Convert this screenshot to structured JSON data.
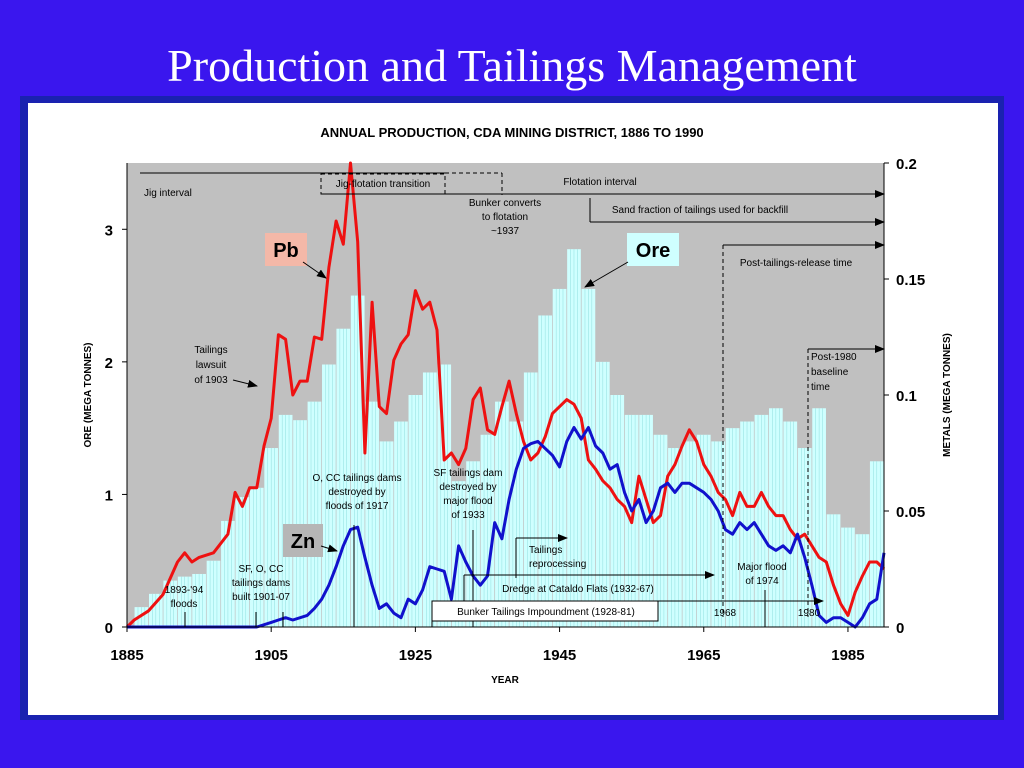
{
  "slide_title": "Production and Tailings Management",
  "chart_data": {
    "type": "bar",
    "title": "ANNUAL PRODUCTION, CDA MINING DISTRICT, 1886 TO 1990",
    "xlabel": "YEAR",
    "ylabel_left": "ORE (MEGA TONNES)",
    "ylabel_right": "METALS (MEGA TONNES)",
    "x_ticks": [
      "1885",
      "1905",
      "1925",
      "1945",
      "1965",
      "1985"
    ],
    "y_left_ticks": [
      "0",
      "1",
      "2",
      "3"
    ],
    "y_right_ticks": [
      "0",
      "0.05",
      "0.1",
      "0.15",
      "0.2"
    ],
    "x_range": [
      1885,
      1990
    ],
    "y_left_range": [
      0,
      3.5
    ],
    "y_right_range": [
      0,
      0.2
    ],
    "colors": {
      "ore": "#cfffff",
      "pb": "#ee1111",
      "zn": "#1111cc",
      "background": "#c0c0c0"
    },
    "series": [
      {
        "name": "Ore",
        "kind": "bars",
        "axis": "left",
        "x": [
          1887,
          1889,
          1891,
          1893,
          1895,
          1897,
          1899,
          1901,
          1903,
          1905,
          1907,
          1909,
          1911,
          1913,
          1915,
          1917,
          1919,
          1921,
          1923,
          1925,
          1927,
          1929,
          1931,
          1933,
          1935,
          1937,
          1939,
          1941,
          1943,
          1945,
          1947,
          1949,
          1951,
          1953,
          1955,
          1957,
          1959,
          1961,
          1963,
          1965,
          1967,
          1969,
          1971,
          1973,
          1975,
          1977,
          1979,
          1981,
          1983,
          1985,
          1987,
          1989
        ],
        "values": [
          0.15,
          0.25,
          0.35,
          0.38,
          0.4,
          0.5,
          0.8,
          0.98,
          1.05,
          1.35,
          1.6,
          1.56,
          1.7,
          1.98,
          2.25,
          2.5,
          1.7,
          1.4,
          1.55,
          1.75,
          1.92,
          1.98,
          1.1,
          1.25,
          1.45,
          1.7,
          1.55,
          1.92,
          2.35,
          2.55,
          2.85,
          2.55,
          2.0,
          1.75,
          1.6,
          1.6,
          1.45,
          1.35,
          1.4,
          1.45,
          1.4,
          1.5,
          1.55,
          1.6,
          1.65,
          1.55,
          1.35,
          1.65,
          0.85,
          0.75,
          0.7,
          1.25
        ]
      },
      {
        "name": "Pb",
        "kind": "line",
        "axis": "right",
        "x": [
          1885,
          1886,
          1888,
          1890,
          1892,
          1893,
          1894,
          1895,
          1897,
          1899,
          1900,
          1901,
          1902,
          1903,
          1904,
          1905,
          1906,
          1907,
          1908,
          1909,
          1910,
          1911,
          1912,
          1913,
          1914,
          1915,
          1916,
          1917,
          1918,
          1919,
          1920,
          1921,
          1922,
          1923,
          1924,
          1925,
          1926,
          1927,
          1928,
          1929,
          1930,
          1931,
          1932,
          1933,
          1934,
          1935,
          1936,
          1937,
          1938,
          1939,
          1940,
          1941,
          1942,
          1943,
          1944,
          1945,
          1946,
          1947,
          1948,
          1949,
          1950,
          1951,
          1952,
          1953,
          1954,
          1955,
          1956,
          1957,
          1958,
          1959,
          1960,
          1961,
          1962,
          1963,
          1964,
          1965,
          1966,
          1967,
          1968,
          1969,
          1970,
          1971,
          1972,
          1973,
          1974,
          1975,
          1976,
          1977,
          1978,
          1979,
          1980,
          1981,
          1982,
          1983,
          1984,
          1985,
          1986,
          1987,
          1988,
          1989,
          1990
        ],
        "values": [
          0.0,
          0.003,
          0.007,
          0.014,
          0.028,
          0.032,
          0.028,
          0.03,
          0.032,
          0.04,
          0.058,
          0.052,
          0.06,
          0.06,
          0.078,
          0.09,
          0.126,
          0.124,
          0.1,
          0.106,
          0.106,
          0.125,
          0.124,
          0.155,
          0.175,
          0.165,
          0.2,
          0.166,
          0.075,
          0.14,
          0.095,
          0.092,
          0.115,
          0.122,
          0.126,
          0.145,
          0.137,
          0.14,
          0.128,
          0.072,
          0.075,
          0.07,
          0.077,
          0.098,
          0.103,
          0.085,
          0.083,
          0.095,
          0.106,
          0.092,
          0.08,
          0.072,
          0.075,
          0.082,
          0.092,
          0.095,
          0.098,
          0.096,
          0.09,
          0.072,
          0.068,
          0.063,
          0.06,
          0.055,
          0.052,
          0.045,
          0.065,
          0.055,
          0.045,
          0.048,
          0.065,
          0.07,
          0.078,
          0.085,
          0.08,
          0.07,
          0.065,
          0.058,
          0.055,
          0.048,
          0.058,
          0.052,
          0.052,
          0.058,
          0.052,
          0.048,
          0.048,
          0.042,
          0.038,
          0.04,
          0.035,
          0.03,
          0.028,
          0.018,
          0.01,
          0.005,
          0.015,
          0.022,
          0.028,
          0.028,
          0.025
        ]
      },
      {
        "name": "Zn",
        "kind": "line",
        "axis": "right",
        "x": [
          1885,
          1900,
          1903,
          1905,
          1906,
          1907,
          1908,
          1910,
          1911,
          1912,
          1913,
          1914,
          1915,
          1916,
          1917,
          1918,
          1919,
          1920,
          1921,
          1922,
          1923,
          1924,
          1925,
          1926,
          1927,
          1928,
          1929,
          1930,
          1931,
          1932,
          1933,
          1934,
          1935,
          1936,
          1937,
          1938,
          1939,
          1940,
          1941,
          1942,
          1943,
          1944,
          1945,
          1946,
          1947,
          1948,
          1949,
          1950,
          1951,
          1952,
          1953,
          1954,
          1955,
          1956,
          1957,
          1958,
          1959,
          1960,
          1961,
          1962,
          1963,
          1964,
          1965,
          1966,
          1967,
          1968,
          1969,
          1970,
          1971,
          1972,
          1973,
          1974,
          1975,
          1976,
          1977,
          1978,
          1979,
          1980,
          1981,
          1982,
          1983,
          1984,
          1985,
          1986,
          1987,
          1988,
          1989,
          1990
        ],
        "values": [
          0,
          0,
          0,
          0.002,
          0.003,
          0.004,
          0.003,
          0.005,
          0.008,
          0.012,
          0.018,
          0.026,
          0.035,
          0.042,
          0.043,
          0.03,
          0.018,
          0.008,
          0.01,
          0.006,
          0.004,
          0.012,
          0.01,
          0.016,
          0.026,
          0.025,
          0.024,
          0.012,
          0.035,
          0.028,
          0.022,
          0.018,
          0.022,
          0.045,
          0.038,
          0.055,
          0.068,
          0.077,
          0.079,
          0.08,
          0.077,
          0.074,
          0.069,
          0.08,
          0.086,
          0.081,
          0.086,
          0.078,
          0.075,
          0.068,
          0.07,
          0.058,
          0.05,
          0.055,
          0.045,
          0.05,
          0.06,
          0.062,
          0.058,
          0.062,
          0.062,
          0.06,
          0.058,
          0.055,
          0.05,
          0.042,
          0.04,
          0.045,
          0.042,
          0.045,
          0.04,
          0.035,
          0.033,
          0.035,
          0.032,
          0.04,
          0.03,
          0.018,
          0.005,
          0.002,
          0.004,
          0.004,
          0.002,
          0.0,
          0.004,
          0.01,
          0.012,
          0.032
        ]
      }
    ],
    "annotations": {
      "jig_interval": "Jig interval",
      "jig_flotation_transition": "Jig-flotation transition",
      "flotation_interval": "Flotation interval",
      "bunker_converts": [
        "Bunker converts",
        "to flotation",
        "~1937"
      ],
      "sand_fraction": "Sand fraction of tailings used for backfill",
      "post_tailings_release": "Post-tailings-release time",
      "post_1980_baseline": [
        "Post-1980",
        "baseline",
        "time"
      ],
      "tailings_lawsuit": [
        "Tailings",
        "lawsuit",
        "of 1903"
      ],
      "oc_dams_1917": [
        "O, CC tailings dams",
        "destroyed by",
        "floods of 1917"
      ],
      "sf_dam_1933": [
        "SF tailings dam",
        "destroyed by",
        "major flood",
        "of 1933"
      ],
      "tailings_reprocessing": [
        "Tailings",
        "reprocessing"
      ],
      "major_flood_1974": [
        "Major flood",
        "of 1974"
      ],
      "dredge": "Dredge at Cataldo Flats (1932-67)",
      "bunker_impoundment": "Bunker Tailings Impoundment (1928-81)",
      "floods_1893": [
        "1893-'94",
        "floods"
      ],
      "sf_dams_built": [
        "SF, O, CC",
        "tailings dams",
        "built 1901-07"
      ],
      "year_1968": "1968",
      "year_1980": "1980"
    },
    "labels": {
      "pb": "Pb",
      "ore": "Ore",
      "zn": "Zn"
    }
  }
}
